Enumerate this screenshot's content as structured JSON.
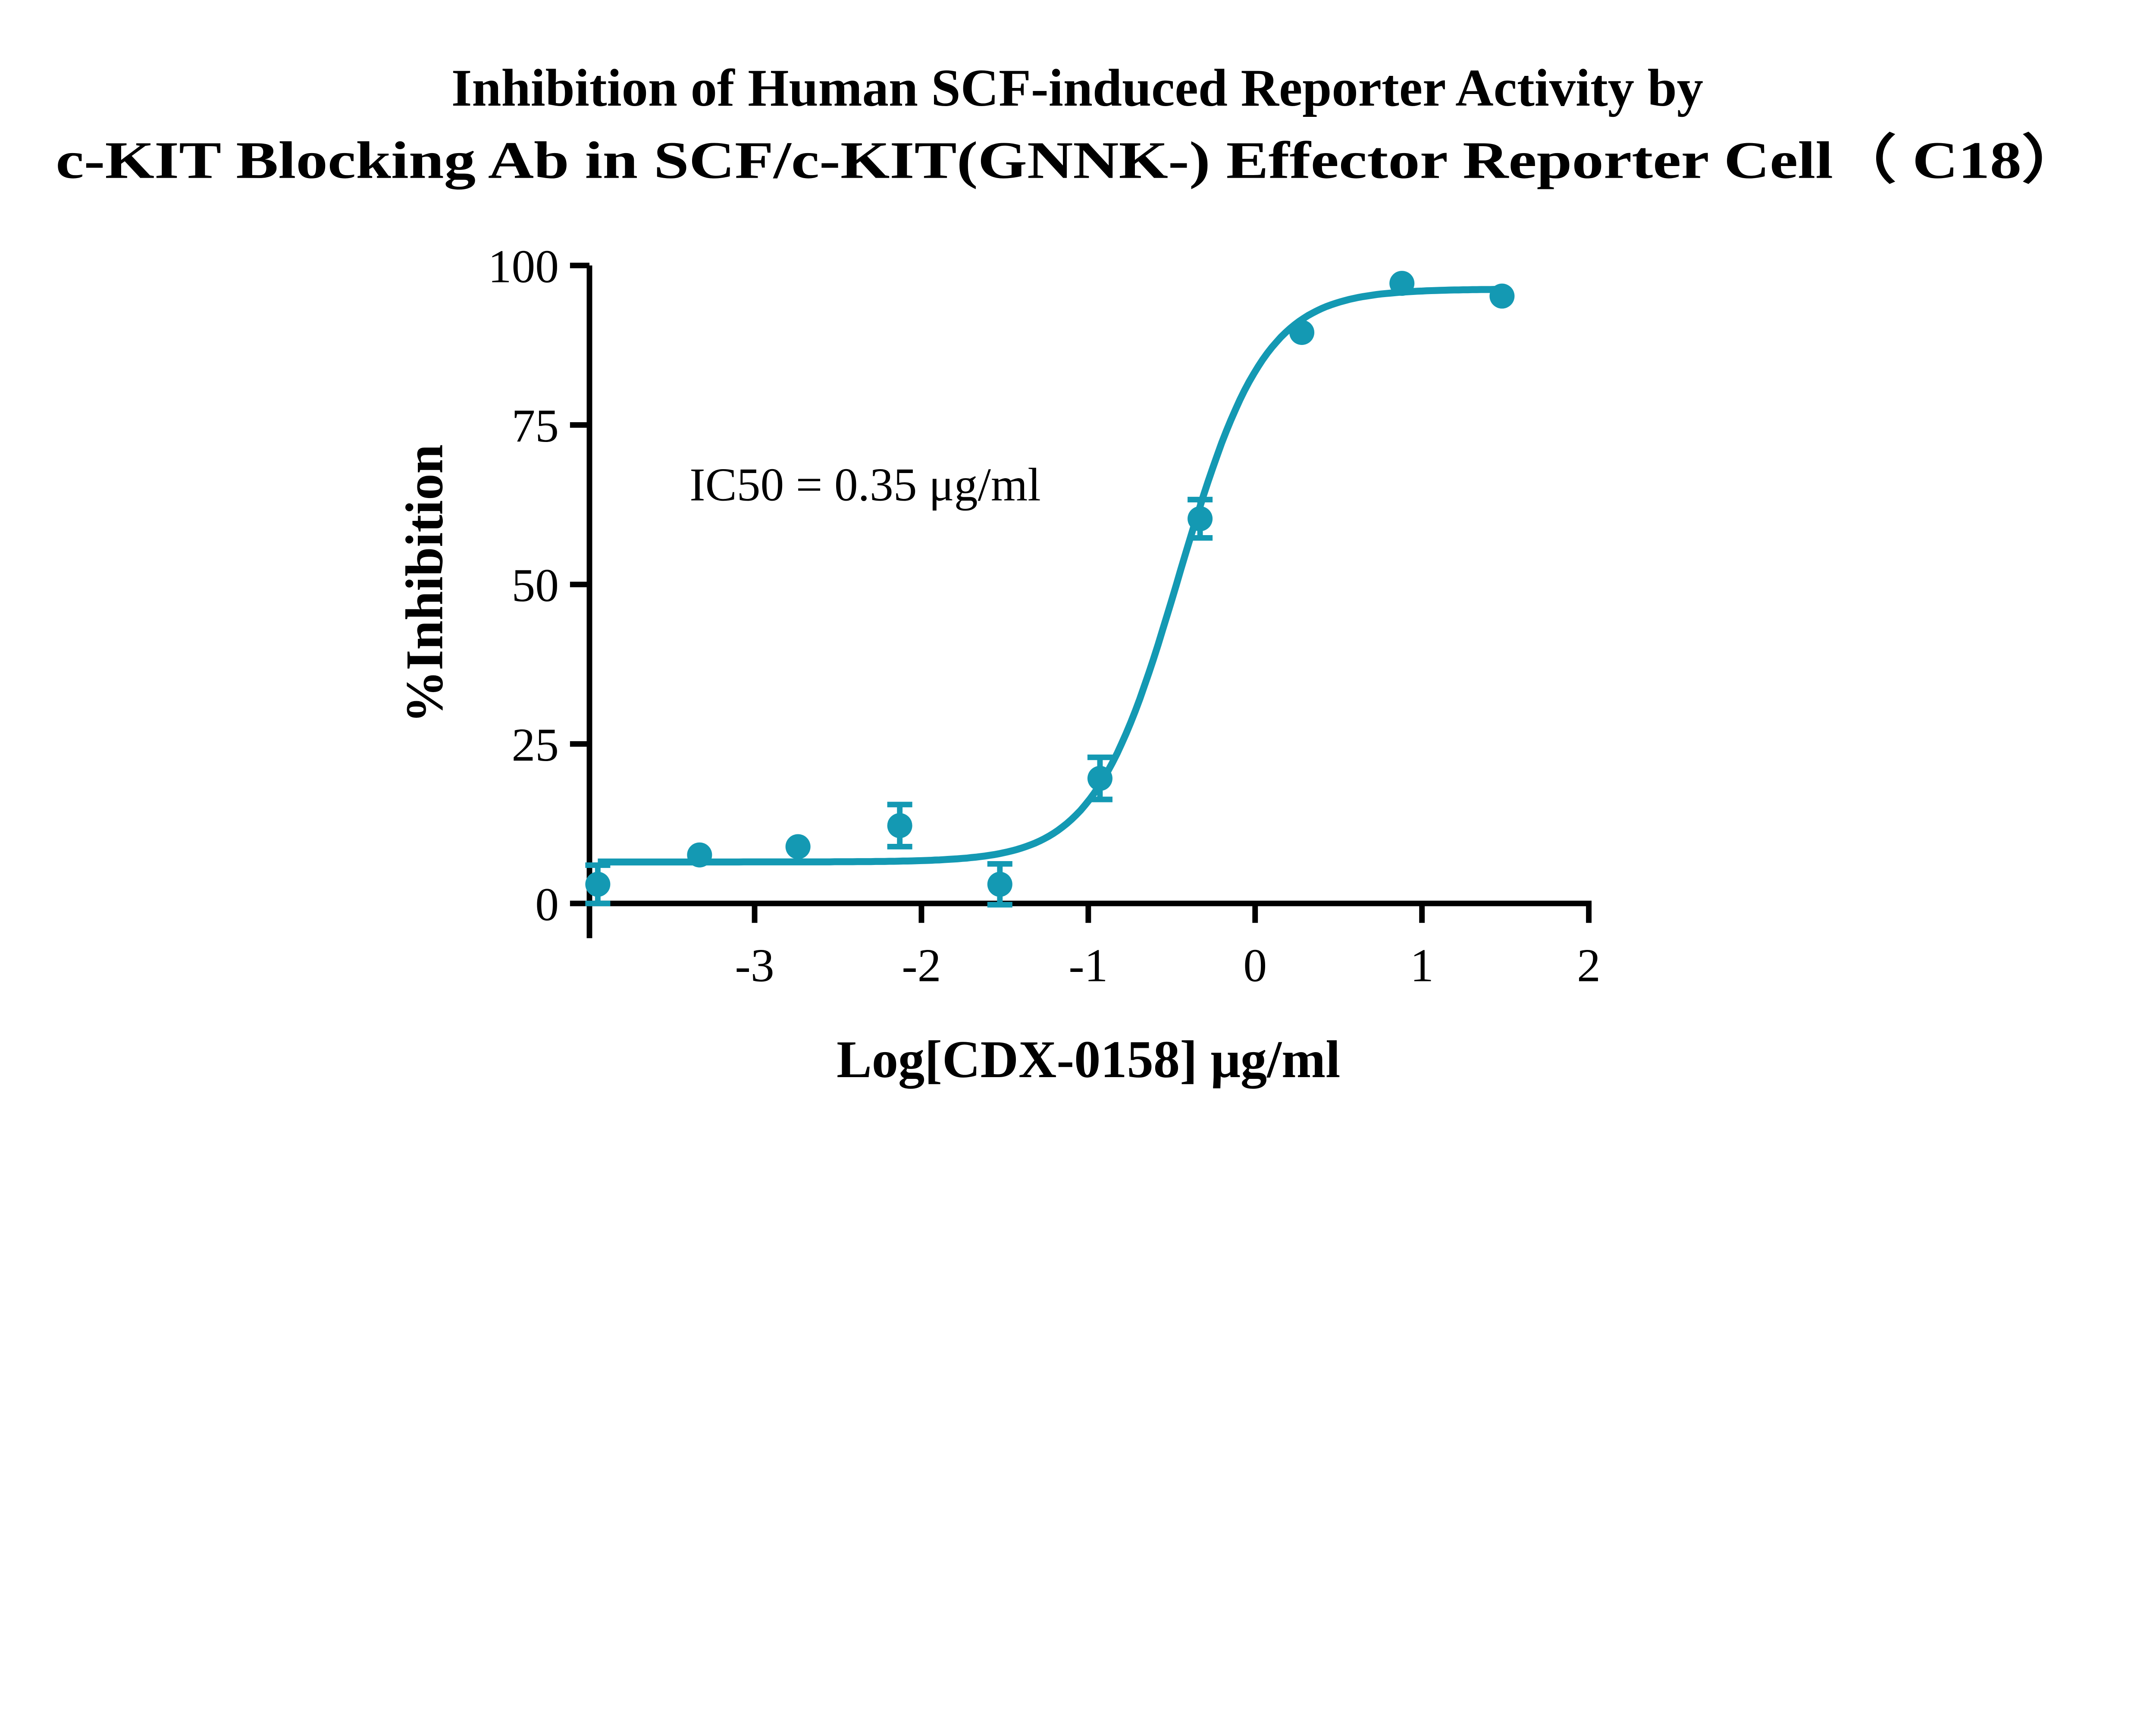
{
  "chart_data": {
    "type": "scatter",
    "title": [
      "Inhibition of Human SCF-induced Reporter Activity by",
      "c-KIT Blocking Ab in SCF/c-KIT(GNNK-) Effector Reporter Cell（ C18）"
    ],
    "xlabel": "Log[CDX-0158] μg/ml",
    "ylabel": "%Inhibition",
    "xlim": [
      -3.99,
      2
    ],
    "ylim": [
      0,
      100
    ],
    "xticks": [
      -3,
      -2,
      -1,
      0,
      1,
      2
    ],
    "xtick_labels": [
      "-3",
      "-2",
      "-1",
      "0",
      "1",
      "2"
    ],
    "yticks": [
      0,
      25,
      50,
      75,
      100
    ],
    "ytick_labels": [
      "0",
      "25",
      "50",
      "75",
      "100"
    ],
    "annotation": "IC50 = 0.35 μg/ml",
    "color": "#1499b3",
    "series": [
      {
        "name": "CDX-0158",
        "x": [
          -3.94,
          -3.33,
          -2.74,
          -2.13,
          -1.53,
          -0.93,
          -0.33,
          0.28,
          0.88,
          1.48
        ],
        "y": [
          3.0,
          7.6,
          8.9,
          12.2,
          3.0,
          19.6,
          60.3,
          89.5,
          97.2,
          95.2
        ],
        "err": [
          3.0,
          0.5,
          0.5,
          3.3,
          3.2,
          3.3,
          3.0,
          0.5,
          0.5,
          0.5
        ]
      }
    ],
    "fit": {
      "model": "4PL",
      "bottom": 6.5,
      "top": 96.3,
      "logIC50": -0.456,
      "hill": 1.7
    }
  }
}
